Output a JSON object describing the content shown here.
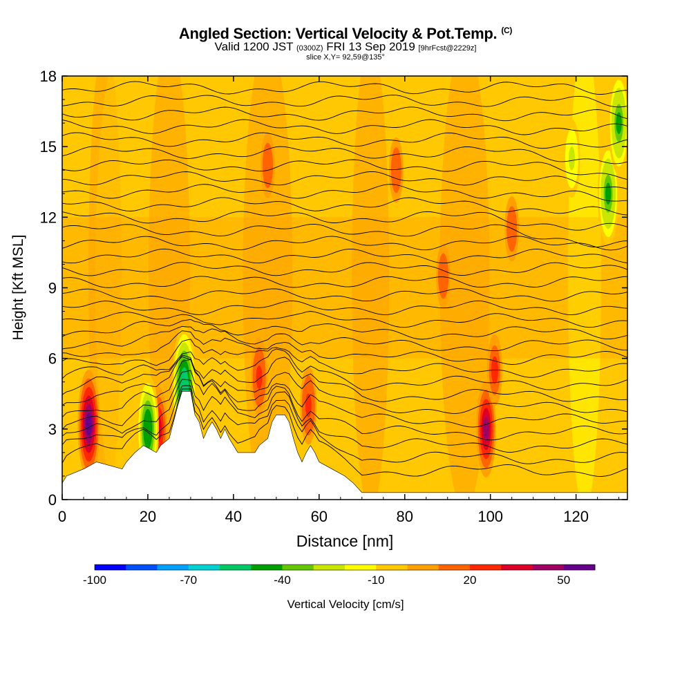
{
  "chart_data": {
    "type": "heatmap",
    "title": "Angled Section: Vertical Velocity & Pot.Temp.",
    "title_symbol": "(C)",
    "subtitle": {
      "valid_prefix": "Valid 1200 JST",
      "utc": "(0300Z)",
      "date": "FRI 13 Sep 2019",
      "forecast": "[9hrFcst@2229z]"
    },
    "slice_label": "slice X,Y= 92,59@135°",
    "xlabel": "Distance [nm]",
    "ylabel": "Height [Kft MSL]",
    "xlim": [
      0,
      132
    ],
    "ylim": [
      0,
      18
    ],
    "x_ticks": [
      0,
      20,
      40,
      60,
      80,
      100,
      120
    ],
    "y_ticks": [
      0,
      3,
      6,
      9,
      12,
      15,
      18
    ],
    "colorbar": {
      "label": "Vertical Velocity [cm/s]",
      "tick_labels": [
        "-100",
        "-70",
        "-40",
        "-10",
        "20",
        "50"
      ],
      "min": -100,
      "max": 60,
      "step": 10,
      "colors": [
        "#0000ff",
        "#0050ff",
        "#00a0ff",
        "#00d2d2",
        "#00c864",
        "#00a000",
        "#64c800",
        "#c8e600",
        "#ffff00",
        "#ffc800",
        "#ffa000",
        "#ff6400",
        "#ff2800",
        "#dc0028",
        "#a00064",
        "#64008c"
      ]
    },
    "background_field": {
      "value_range_cm_s": [
        -10,
        0
      ],
      "color": "#ffc800"
    },
    "potential_temperature_contours": {
      "units": "C",
      "note": "isentropes, increasing with height"
    },
    "terrain_kft": [
      [
        0,
        0.7
      ],
      [
        1,
        1.0
      ],
      [
        5,
        1.3
      ],
      [
        8,
        1.6
      ],
      [
        14,
        1.3
      ],
      [
        15,
        1.6
      ],
      [
        17,
        2.0
      ],
      [
        19,
        2.3
      ],
      [
        22,
        2.0
      ],
      [
        23,
        2.3
      ],
      [
        25,
        2.6
      ],
      [
        26,
        3.3
      ],
      [
        27,
        4.0
      ],
      [
        28,
        4.6
      ],
      [
        30,
        4.6
      ],
      [
        31,
        3.6
      ],
      [
        32,
        3.3
      ],
      [
        33,
        2.6
      ],
      [
        34,
        3.0
      ],
      [
        35,
        3.3
      ],
      [
        36,
        3.0
      ],
      [
        37,
        2.6
      ],
      [
        38,
        3.0
      ],
      [
        39,
        2.6
      ],
      [
        40,
        2.3
      ],
      [
        41,
        2.0
      ],
      [
        45,
        2.0
      ],
      [
        46,
        2.3
      ],
      [
        48,
        2.6
      ],
      [
        49,
        3.3
      ],
      [
        50,
        3.6
      ],
      [
        52,
        3.6
      ],
      [
        53,
        3.3
      ],
      [
        54,
        2.6
      ],
      [
        55,
        2.0
      ],
      [
        56,
        1.6
      ],
      [
        57,
        2.0
      ],
      [
        58,
        2.3
      ],
      [
        59,
        2.0
      ],
      [
        60,
        1.6
      ],
      [
        63,
        1.3
      ],
      [
        66,
        1.0
      ],
      [
        68,
        0.7
      ],
      [
        70,
        0.3
      ],
      [
        72,
        0.3
      ],
      [
        75,
        0.3
      ],
      [
        85,
        0.3
      ],
      [
        88,
        0.3
      ],
      [
        132,
        0.3
      ]
    ],
    "updrafts": [
      {
        "x": 6.2,
        "y": 3.2,
        "value": 50
      },
      {
        "x": 22.5,
        "y": 3.0,
        "value": 30
      },
      {
        "x": 46,
        "y": 5.2,
        "value": 25
      },
      {
        "x": 57.5,
        "y": 4.0,
        "value": 25
      },
      {
        "x": 99,
        "y": 3.0,
        "value": 40
      },
      {
        "x": 101,
        "y": 5.5,
        "value": 20
      },
      {
        "x": 48,
        "y": 14.2,
        "value": 15
      },
      {
        "x": 78,
        "y": 14.0,
        "value": 15
      },
      {
        "x": 105,
        "y": 11.5,
        "value": 15
      },
      {
        "x": 89,
        "y": 9.5,
        "value": 15
      }
    ],
    "downdrafts": [
      {
        "x": 20,
        "y": 3.0,
        "value": -50
      },
      {
        "x": 28.5,
        "y": 4.8,
        "value": -60
      },
      {
        "x": 127.5,
        "y": 13.0,
        "value": -45
      },
      {
        "x": 130,
        "y": 16.0,
        "value": -45
      },
      {
        "x": 119,
        "y": 14.5,
        "value": -25
      }
    ]
  }
}
